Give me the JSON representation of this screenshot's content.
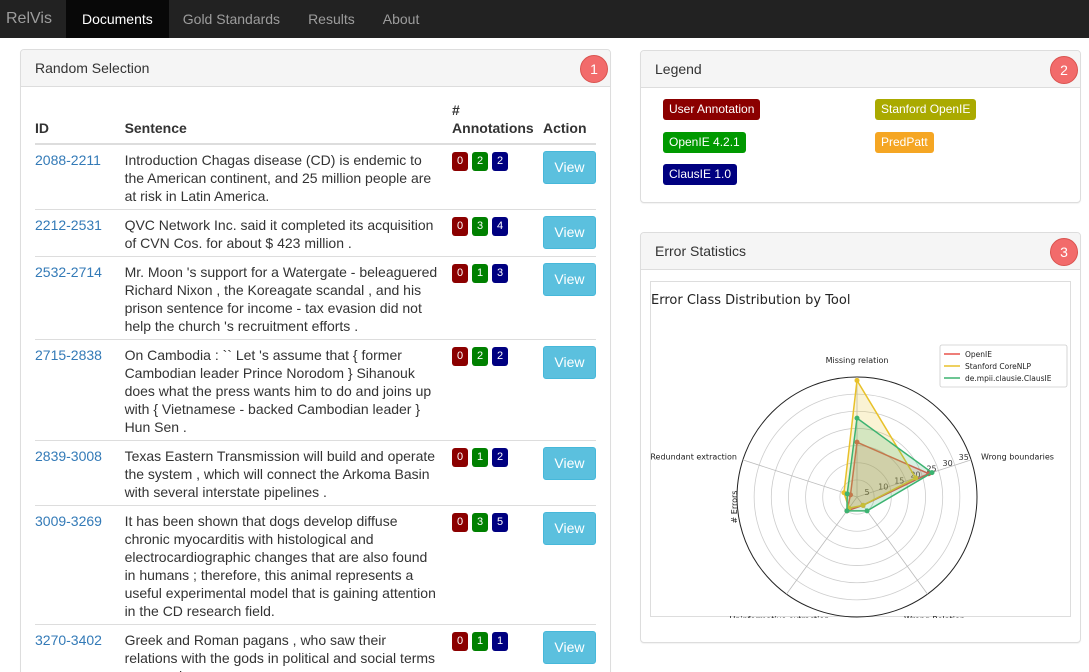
{
  "nav": {
    "brand": "RelVis",
    "items": [
      "Documents",
      "Gold Standards",
      "Results",
      "About"
    ]
  },
  "random_panel": {
    "title": "Random Selection",
    "marker": "1",
    "headers": {
      "id": "ID",
      "sentence": "Sentence",
      "annotations_line1": "#",
      "annotations_line2": "Annotations",
      "action": "Action"
    },
    "view_label": "View",
    "rows": [
      {
        "id": "2088-2211",
        "sentence": "Introduction Chagas disease (CD) is endemic to the American continent, and 25 million people are at risk in Latin America.",
        "counts": [
          "0",
          "2",
          "2"
        ]
      },
      {
        "id": "2212-2531",
        "sentence": "QVC Network Inc. said it completed its acquisition of CVN Cos. for about $ 423 million .",
        "counts": [
          "0",
          "3",
          "4"
        ]
      },
      {
        "id": "2532-2714",
        "sentence": "Mr. Moon 's support for a Watergate - beleaguered Richard Nixon , the Koreagate scandal , and his prison sentence for income - tax evasion did not help the church 's recruitment efforts .",
        "counts": [
          "0",
          "1",
          "3"
        ]
      },
      {
        "id": "2715-2838",
        "sentence": "On Cambodia : `` Let 's assume that { former Cambodian leader Prince Norodom } Sihanouk does what the press wants him to do and joins up with { Vietnamese - backed Cambodian leader } Hun Sen .",
        "counts": [
          "0",
          "2",
          "2"
        ]
      },
      {
        "id": "2839-3008",
        "sentence": "Texas Eastern Transmission will build and operate the system , which will connect the Arkoma Basin with several interstate pipelines .",
        "counts": [
          "0",
          "1",
          "2"
        ]
      },
      {
        "id": "3009-3269",
        "sentence": "It has been shown that dogs develop diffuse chronic myocarditis with histological and electrocardiographic changes that are also found in humans ; therefore, this animal represents a useful experimental model that is gaining attention in the CD research field.",
        "counts": [
          "0",
          "3",
          "5"
        ]
      },
      {
        "id": "3270-3402",
        "sentence": "Greek and Roman pagans , who saw their relations with the gods in political and social terms , scorned",
        "counts": [
          "0",
          "1",
          "1"
        ]
      }
    ]
  },
  "legend_panel": {
    "title": "Legend",
    "marker": "2",
    "labels": [
      {
        "text": "User Annotation",
        "color": "#8b0000"
      },
      {
        "text": "Stanford OpenIE",
        "color": "#aaaa00"
      },
      {
        "text": "OpenIE 4.2.1",
        "color": "#009900"
      },
      {
        "text": "PredPatt",
        "color": "#f5a623"
      },
      {
        "text": "ClausIE 1.0",
        "color": "#000080"
      }
    ]
  },
  "stats_panel": {
    "title": "Error Statistics",
    "marker": "3"
  },
  "chart_data": {
    "type": "radar",
    "title": "Error Class Distribution by Tool",
    "ylabel": "# Errors",
    "categories": [
      "Missing relation",
      "Wrong boundaries",
      "Wrong Relation",
      "Uninformative extraction",
      "Redundant extraction"
    ],
    "rmax": 35,
    "radial_ticks": [
      5,
      10,
      15,
      20,
      25,
      30,
      35
    ],
    "legend_position": "top-right",
    "series": [
      {
        "name": "OpenIE",
        "color": "#e8534a",
        "values": [
          16,
          22,
          3,
          5,
          2
        ]
      },
      {
        "name": "Stanford CoreNLP",
        "color": "#e8c12a",
        "values": [
          34,
          18,
          3,
          4,
          4
        ]
      },
      {
        "name": "de.mpii.clausie.ClausIE",
        "color": "#3cb371",
        "values": [
          23,
          23,
          5,
          5,
          3
        ]
      }
    ]
  }
}
